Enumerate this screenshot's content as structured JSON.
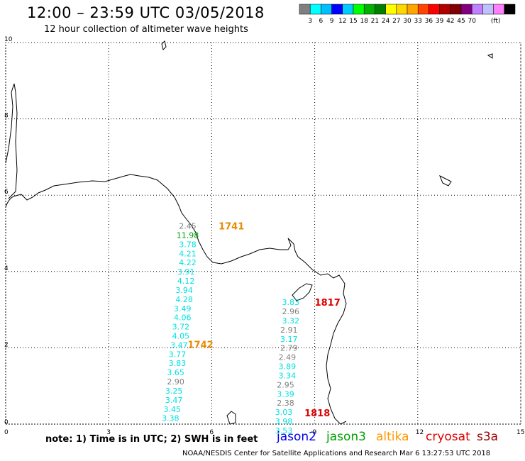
{
  "title": "12:00 – 23:59 UTC 03/05/2018",
  "subtitle": "12 hour collection of altimeter wave heights",
  "legend": {
    "colors": [
      "#808080",
      "#00ffff",
      "#00bfff",
      "#0000ff",
      "#00ccff",
      "#00ff00",
      "#00b000",
      "#008000",
      "#ffff00",
      "#ffd700",
      "#ffa500",
      "#ff4500",
      "#ff0000",
      "#b00000",
      "#800000",
      "#800080",
      "#c080ff",
      "#c0c0ff",
      "#ff80ff",
      "#000000"
    ],
    "labels": [
      "3",
      "6",
      "9",
      "12",
      "15",
      "18",
      "21",
      "24",
      "27",
      "30",
      "33",
      "36",
      "39",
      "42",
      "45",
      "70",
      "(ft)"
    ]
  },
  "axes": {
    "x_ticks": [
      "0",
      "3",
      "6",
      "9",
      "12",
      "15"
    ],
    "y_ticks": [
      "10",
      "8",
      "6",
      "4",
      "2",
      "0"
    ],
    "xlim": [
      0,
      15
    ],
    "ylim": [
      0,
      10
    ]
  },
  "time_labels": [
    {
      "text": "1741",
      "lon": 6.2,
      "lat": 5.1,
      "color": "#e88a00"
    },
    {
      "text": "1742",
      "lon": 5.3,
      "lat": 2.0,
      "color": "#e88a00"
    },
    {
      "text": "1817",
      "lon": 9.0,
      "lat": 3.1,
      "color": "#e00000"
    },
    {
      "text": "1818",
      "lon": 8.7,
      "lat": 0.2,
      "color": "#e00000"
    }
  ],
  "tracks": [
    {
      "name": "altika_1741",
      "points": [
        {
          "v": "2.45",
          "lon": 5.3,
          "lat": 5.12,
          "c": "#808080"
        },
        {
          "v": "11.98",
          "lon": 5.3,
          "lat": 4.88,
          "c": "#00a000"
        },
        {
          "v": "3.78",
          "lon": 5.3,
          "lat": 4.64,
          "c": "#00e0e0"
        },
        {
          "v": "4.21",
          "lon": 5.3,
          "lat": 4.4,
          "c": "#00e0e0"
        },
        {
          "v": "4.22",
          "lon": 5.3,
          "lat": 4.16,
          "c": "#00e0e0"
        },
        {
          "v": "3.91",
          "lon": 5.25,
          "lat": 3.92,
          "c": "#00e0e0"
        },
        {
          "v": "4.12",
          "lon": 5.25,
          "lat": 3.68,
          "c": "#00e0e0"
        },
        {
          "v": "3.94",
          "lon": 5.2,
          "lat": 3.44,
          "c": "#00e0e0"
        },
        {
          "v": "4.28",
          "lon": 5.2,
          "lat": 3.2,
          "c": "#00e0e0"
        },
        {
          "v": "3.49",
          "lon": 5.15,
          "lat": 2.96,
          "c": "#00e0e0"
        },
        {
          "v": "4.06",
          "lon": 5.15,
          "lat": 2.72,
          "c": "#00e0e0"
        },
        {
          "v": "3.72",
          "lon": 5.1,
          "lat": 2.48,
          "c": "#00e0e0"
        },
        {
          "v": "4.05",
          "lon": 5.1,
          "lat": 2.24,
          "c": "#00e0e0"
        },
        {
          "v": "3.47",
          "lon": 5.05,
          "lat": 2.0,
          "c": "#00e0e0"
        },
        {
          "v": "3.77",
          "lon": 5.0,
          "lat": 1.76,
          "c": "#00e0e0"
        },
        {
          "v": "3.83",
          "lon": 5.0,
          "lat": 1.52,
          "c": "#00e0e0"
        },
        {
          "v": "3.65",
          "lon": 4.95,
          "lat": 1.28,
          "c": "#00e0e0"
        },
        {
          "v": "2.90",
          "lon": 4.95,
          "lat": 1.04,
          "c": "#808080"
        },
        {
          "v": "3.25",
          "lon": 4.9,
          "lat": 0.8,
          "c": "#00e0e0"
        },
        {
          "v": "3.47",
          "lon": 4.9,
          "lat": 0.56,
          "c": "#00e0e0"
        },
        {
          "v": "3.45",
          "lon": 4.85,
          "lat": 0.32,
          "c": "#00e0e0"
        },
        {
          "v": "3.38",
          "lon": 4.8,
          "lat": 0.08,
          "c": "#00e0e0"
        }
      ]
    },
    {
      "name": "cryosat_1817",
      "points": [
        {
          "v": "3.83",
          "lon": 8.3,
          "lat": 3.12,
          "c": "#00e0e0"
        },
        {
          "v": "2.96",
          "lon": 8.3,
          "lat": 2.88,
          "c": "#808080"
        },
        {
          "v": "3.32",
          "lon": 8.3,
          "lat": 2.64,
          "c": "#00e0e0"
        },
        {
          "v": "2.91",
          "lon": 8.25,
          "lat": 2.4,
          "c": "#808080"
        },
        {
          "v": "3.17",
          "lon": 8.25,
          "lat": 2.16,
          "c": "#00e0e0"
        },
        {
          "v": "2.79",
          "lon": 8.25,
          "lat": 1.92,
          "c": "#808080"
        },
        {
          "v": "2.49",
          "lon": 8.2,
          "lat": 1.68,
          "c": "#808080"
        },
        {
          "v": "3.89",
          "lon": 8.2,
          "lat": 1.44,
          "c": "#00e0e0"
        },
        {
          "v": "3.34",
          "lon": 8.2,
          "lat": 1.2,
          "c": "#00e0e0"
        },
        {
          "v": "2.95",
          "lon": 8.15,
          "lat": 0.96,
          "c": "#808080"
        },
        {
          "v": "3.39",
          "lon": 8.15,
          "lat": 0.72,
          "c": "#00e0e0"
        },
        {
          "v": "2.38",
          "lon": 8.15,
          "lat": 0.48,
          "c": "#808080"
        },
        {
          "v": "3.03",
          "lon": 8.1,
          "lat": 0.24,
          "c": "#00e0e0"
        },
        {
          "v": "3.98",
          "lon": 8.1,
          "lat": 0.0,
          "c": "#00e0e0"
        },
        {
          "v": "3.53",
          "lon": 8.1,
          "lat": -0.24,
          "c": "#00e0e0"
        }
      ]
    }
  ],
  "note": "note: 1) Time is in UTC; 2) SWH is in feet",
  "satellites": [
    {
      "name": "jason2",
      "color": "#0000ee"
    },
    {
      "name": "jason3",
      "color": "#00a000"
    },
    {
      "name": "altika",
      "color": "#ff9900"
    },
    {
      "name": "cryosat",
      "color": "#e00000"
    },
    {
      "name": "s3a",
      "color": "#a00000"
    }
  ],
  "footer": "NOAA/NESDIS Center for Satellite Applications and Research   Mar  6 13:27:53 UTC 2018"
}
